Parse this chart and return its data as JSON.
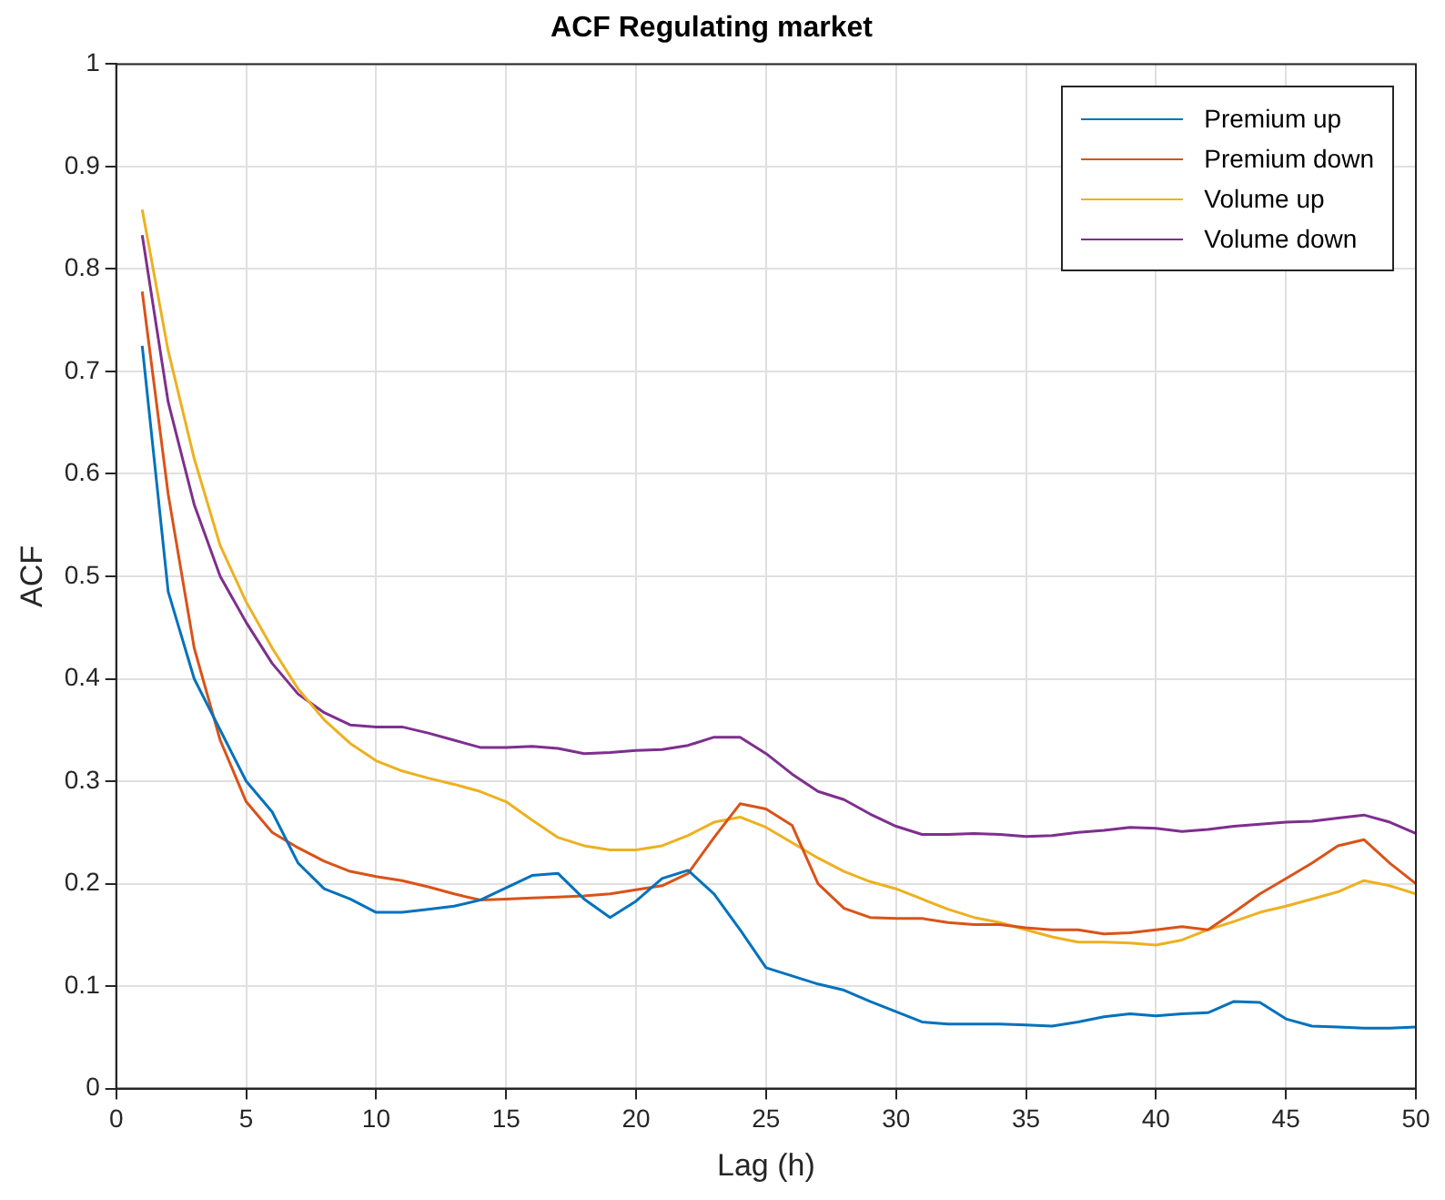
{
  "chart_data": {
    "type": "line",
    "title": "ACF Regulating market",
    "xlabel": "Lag (h)",
    "ylabel": "ACF",
    "x": [
      1,
      2,
      3,
      4,
      5,
      6,
      7,
      8,
      9,
      10,
      11,
      12,
      13,
      14,
      15,
      16,
      17,
      18,
      19,
      20,
      21,
      22,
      23,
      24,
      25,
      26,
      27,
      28,
      29,
      30,
      31,
      32,
      33,
      34,
      35,
      36,
      37,
      38,
      39,
      40,
      41,
      42,
      43,
      44,
      45,
      46,
      47,
      48,
      49,
      50
    ],
    "series": [
      {
        "name": "Premium up",
        "color": "#0072bd",
        "values": [
          0.725,
          0.485,
          0.4,
          0.35,
          0.3,
          0.27,
          0.22,
          0.195,
          0.185,
          0.172,
          0.172,
          0.175,
          0.178,
          0.184,
          0.196,
          0.208,
          0.21,
          0.185,
          0.167,
          0.183,
          0.205,
          0.213,
          0.19,
          0.155,
          0.118,
          0.11,
          0.102,
          0.096,
          0.085,
          0.075,
          0.065,
          0.063,
          0.063,
          0.063,
          0.062,
          0.061,
          0.065,
          0.07,
          0.073,
          0.071,
          0.073,
          0.074,
          0.085,
          0.084,
          0.068,
          0.061,
          0.06,
          0.059,
          0.059,
          0.06
        ]
      },
      {
        "name": "Premium down",
        "color": "#d95319",
        "values": [
          0.778,
          0.58,
          0.43,
          0.34,
          0.28,
          0.25,
          0.235,
          0.222,
          0.212,
          0.207,
          0.203,
          0.197,
          0.19,
          0.184,
          0.185,
          0.186,
          0.187,
          0.188,
          0.19,
          0.194,
          0.198,
          0.21,
          0.245,
          0.278,
          0.273,
          0.257,
          0.2,
          0.176,
          0.167,
          0.166,
          0.166,
          0.162,
          0.16,
          0.16,
          0.157,
          0.155,
          0.155,
          0.151,
          0.152,
          0.155,
          0.158,
          0.155,
          0.172,
          0.19,
          0.205,
          0.22,
          0.237,
          0.243,
          0.22,
          0.2
        ]
      },
      {
        "name": "Volume up",
        "color": "#edb120",
        "values": [
          0.858,
          0.72,
          0.615,
          0.53,
          0.475,
          0.43,
          0.39,
          0.36,
          0.337,
          0.32,
          0.31,
          0.303,
          0.297,
          0.29,
          0.28,
          0.262,
          0.245,
          0.237,
          0.233,
          0.233,
          0.237,
          0.247,
          0.26,
          0.265,
          0.255,
          0.24,
          0.225,
          0.212,
          0.202,
          0.195,
          0.185,
          0.175,
          0.167,
          0.162,
          0.155,
          0.148,
          0.143,
          0.143,
          0.142,
          0.14,
          0.145,
          0.155,
          0.163,
          0.172,
          0.178,
          0.185,
          0.192,
          0.203,
          0.198,
          0.19
        ]
      },
      {
        "name": "Volume down",
        "color": "#7e2f8e",
        "values": [
          0.833,
          0.67,
          0.57,
          0.5,
          0.455,
          0.415,
          0.385,
          0.367,
          0.355,
          0.353,
          0.353,
          0.347,
          0.34,
          0.333,
          0.333,
          0.334,
          0.332,
          0.327,
          0.328,
          0.33,
          0.331,
          0.335,
          0.343,
          0.343,
          0.327,
          0.307,
          0.29,
          0.282,
          0.268,
          0.256,
          0.248,
          0.248,
          0.249,
          0.248,
          0.246,
          0.247,
          0.25,
          0.252,
          0.255,
          0.254,
          0.251,
          0.253,
          0.256,
          0.258,
          0.26,
          0.261,
          0.264,
          0.267,
          0.26,
          0.249
        ]
      }
    ],
    "xlim": [
      0,
      50
    ],
    "xticks": [
      0,
      5,
      10,
      15,
      20,
      25,
      30,
      35,
      40,
      45,
      50
    ],
    "ylim": [
      0,
      1
    ],
    "yticks": [
      0,
      0.1,
      0.2,
      0.3,
      0.4,
      0.5,
      0.6,
      0.7,
      0.8,
      0.9,
      1
    ],
    "grid": true,
    "legend": "top right",
    "marker": "none",
    "line_style": "solid"
  }
}
